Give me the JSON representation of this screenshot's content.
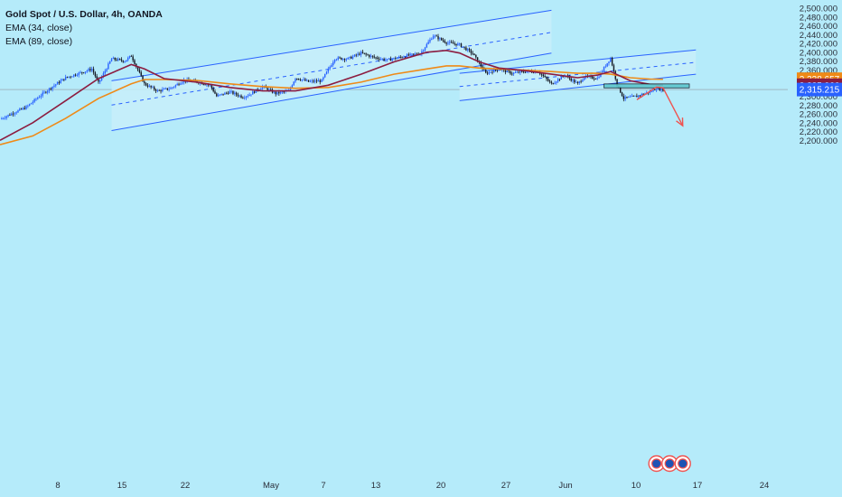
{
  "legend": {
    "title": "Gold Spot / U.S. Dollar, 4h, OANDA",
    "ema34": "EMA (34, close)",
    "ema89": "EMA (89, close)"
  },
  "colors": {
    "background": "#b5ebfa",
    "up_candle": "#2962ff",
    "down_candle": "#131722",
    "ema34": "#8c1d40",
    "ema89": "#ef8a17",
    "channel_line": "#2962ff",
    "channel_fill": "#c8eff9",
    "projection": "#ef5350",
    "zone_fill": "#5ec8cf",
    "crosshair": "#9598a1"
  },
  "chart_data": {
    "type": "candlestick",
    "timeframe": "4h",
    "symbol": "XAUUSD",
    "x_ticks": [
      "8",
      "15",
      "22",
      "May",
      "7",
      "13",
      "20",
      "27",
      "Jun",
      "10",
      "17",
      "24"
    ],
    "y_ticks": [
      "2,500.000",
      "2,480.000",
      "2,460.000",
      "2,440.000",
      "2,420.000",
      "2,400.000",
      "2,380.000",
      "2,360.000",
      "2,340.000",
      "2,320.000",
      "2,300.000",
      "2,280.000",
      "2,260.000",
      "2,240.000",
      "2,220.000",
      "2,200.000"
    ],
    "ylim": [
      2190,
      2505
    ],
    "price_labels": [
      {
        "name": "EMA 89",
        "value": "2,338.657",
        "color": "#ef8a17"
      },
      {
        "name": "EMA 34",
        "value": "2,325.066",
        "color": "#8c1d40"
      },
      {
        "name": "Last price",
        "value": "2,315.215",
        "color": "#2962ff"
      }
    ],
    "close_path": [
      [
        0,
        2248
      ],
      [
        2,
        2262
      ],
      [
        4,
        2275
      ],
      [
        6,
        2300
      ],
      [
        8,
        2322
      ],
      [
        10,
        2342
      ],
      [
        12,
        2352
      ],
      [
        14,
        2362
      ],
      [
        15,
        2330
      ],
      [
        17,
        2385
      ],
      [
        19,
        2380
      ],
      [
        20,
        2392
      ],
      [
        22,
        2328
      ],
      [
        24,
        2312
      ],
      [
        26,
        2318
      ],
      [
        28,
        2336
      ],
      [
        30,
        2333
      ],
      [
        32,
        2325
      ],
      [
        33,
        2300
      ],
      [
        35,
        2310
      ],
      [
        37,
        2298
      ],
      [
        38,
        2304
      ],
      [
        40,
        2322
      ],
      [
        42,
        2306
      ],
      [
        44,
        2312
      ],
      [
        45,
        2342
      ],
      [
        47,
        2333
      ],
      [
        49,
        2335
      ],
      [
        51,
        2386
      ],
      [
        53,
        2385
      ],
      [
        55,
        2398
      ],
      [
        57,
        2388
      ],
      [
        59,
        2382
      ],
      [
        62,
        2392
      ],
      [
        64,
        2397
      ],
      [
        66,
        2438
      ],
      [
        68,
        2422
      ],
      [
        70,
        2417
      ],
      [
        72,
        2397
      ],
      [
        74,
        2352
      ],
      [
        76,
        2362
      ],
      [
        78,
        2352
      ],
      [
        80,
        2356
      ],
      [
        82,
        2356
      ],
      [
        84,
        2328
      ],
      [
        86,
        2348
      ],
      [
        88,
        2328
      ],
      [
        89,
        2344
      ],
      [
        91,
        2341
      ],
      [
        93,
        2387
      ],
      [
        94,
        2326
      ],
      [
        95,
        2295
      ],
      [
        97,
        2300
      ],
      [
        99,
        2310
      ],
      [
        100,
        2318
      ],
      [
        101,
        2315
      ]
    ],
    "ema34": [
      [
        0,
        2200
      ],
      [
        5,
        2240
      ],
      [
        10,
        2290
      ],
      [
        15,
        2340
      ],
      [
        20,
        2372
      ],
      [
        22,
        2362
      ],
      [
        25,
        2340
      ],
      [
        30,
        2332
      ],
      [
        35,
        2320
      ],
      [
        40,
        2312
      ],
      [
        45,
        2312
      ],
      [
        50,
        2325
      ],
      [
        55,
        2350
      ],
      [
        60,
        2378
      ],
      [
        65,
        2400
      ],
      [
        68,
        2404
      ],
      [
        70,
        2398
      ],
      [
        73,
        2378
      ],
      [
        76,
        2364
      ],
      [
        80,
        2358
      ],
      [
        84,
        2350
      ],
      [
        88,
        2342
      ],
      [
        91,
        2348
      ],
      [
        93,
        2356
      ],
      [
        96,
        2335
      ],
      [
        99,
        2327
      ],
      [
        101,
        2325
      ]
    ],
    "ema89": [
      [
        0,
        2190
      ],
      [
        5,
        2210
      ],
      [
        10,
        2250
      ],
      [
        15,
        2295
      ],
      [
        20,
        2328
      ],
      [
        22,
        2338
      ],
      [
        25,
        2338
      ],
      [
        30,
        2336
      ],
      [
        35,
        2328
      ],
      [
        40,
        2322
      ],
      [
        45,
        2318
      ],
      [
        50,
        2320
      ],
      [
        55,
        2332
      ],
      [
        60,
        2350
      ],
      [
        65,
        2362
      ],
      [
        68,
        2369
      ],
      [
        70,
        2369
      ],
      [
        73,
        2364
      ],
      [
        76,
        2362
      ],
      [
        80,
        2359
      ],
      [
        84,
        2356
      ],
      [
        88,
        2352
      ],
      [
        91,
        2352
      ],
      [
        93,
        2350
      ],
      [
        96,
        2342
      ],
      [
        99,
        2339
      ],
      [
        101,
        2338.657
      ]
    ],
    "channel_1": {
      "upper": [
        [
          17,
          2335
        ],
        [
          84,
          2495
        ]
      ],
      "mid": [
        [
          17,
          2280
        ],
        [
          84,
          2445
        ]
      ],
      "lower": [
        [
          17,
          2222
        ],
        [
          84,
          2398
        ]
      ]
    },
    "channel_2": {
      "upper": [
        [
          70,
          2352
        ],
        [
          106,
          2405
        ]
      ],
      "mid": [
        [
          70,
          2322
        ],
        [
          106,
          2377
        ]
      ],
      "lower": [
        [
          70,
          2290
        ],
        [
          106,
          2350
        ]
      ]
    },
    "zone": {
      "x": [
        92,
        105
      ],
      "y": [
        2319,
        2328
      ]
    },
    "projection": [
      [
        97,
        2292
      ],
      [
        100,
        2321
      ],
      [
        101,
        2319
      ],
      [
        104,
        2233
      ]
    ],
    "annotations": [
      {
        "name": "event-marker-1",
        "x": 100
      },
      {
        "name": "event-marker-2",
        "x": 102
      },
      {
        "name": "event-marker-3",
        "x": 104
      }
    ]
  }
}
